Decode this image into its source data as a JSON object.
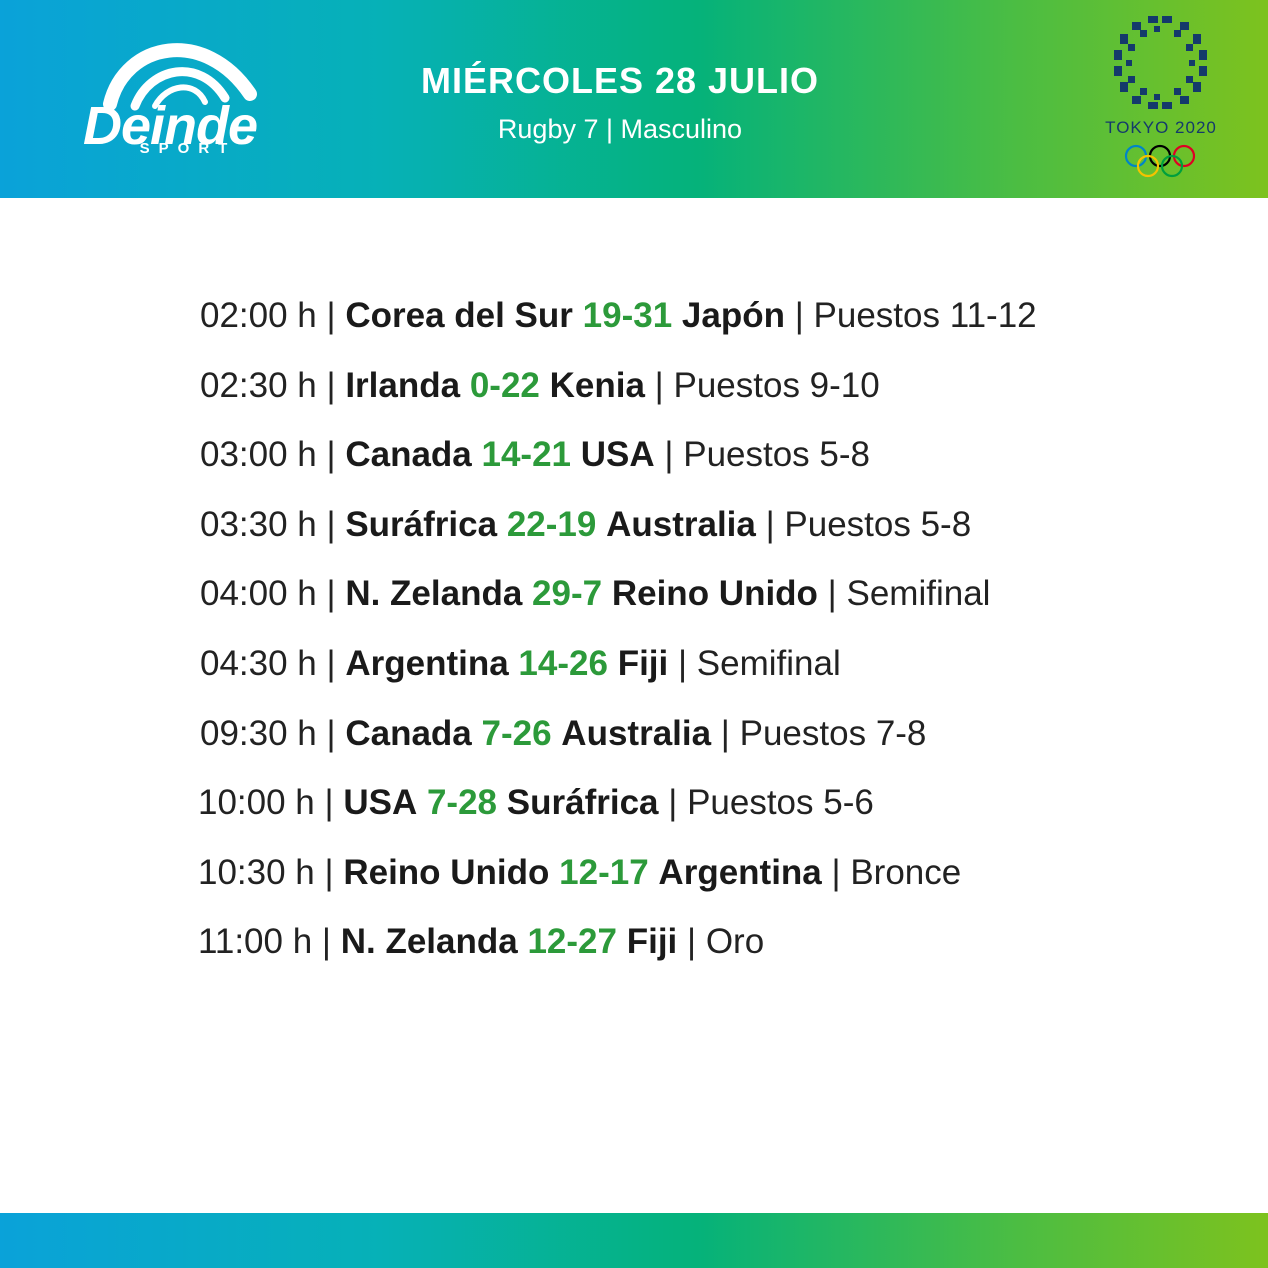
{
  "brand": {
    "name": "Deinde",
    "sub": "SPORT"
  },
  "header": {
    "title": "MIÉRCOLES 28 JULIO",
    "subtitle": "Rugby 7 | Masculino"
  },
  "olympic": {
    "label": "TOKYO 2020"
  },
  "colors": {
    "score": "#2c9a3a",
    "text": "#222222",
    "olympic_blue": "#143a6b"
  },
  "matches": [
    {
      "time": "02:00 h",
      "home": "Corea del Sur",
      "score": "19-31",
      "away": "Japón",
      "stage": "Puestos 11-12"
    },
    {
      "time": "02:30 h",
      "home": "Irlanda",
      "score": "0-22",
      "away": "Kenia",
      "stage": "Puestos 9-10"
    },
    {
      "time": "03:00 h",
      "home": "Canada",
      "score": "14-21",
      "away": "USA",
      "stage": "Puestos 5-8"
    },
    {
      "time": "03:30 h",
      "home": "Suráfrica",
      "score": "22-19",
      "away": "Australia",
      "stage": "Puestos 5-8"
    },
    {
      "time": "04:00 h",
      "home": "N. Zelanda",
      "score": "29-7",
      "away": "Reino Unido",
      "stage": "Semifinal"
    },
    {
      "time": "04:30 h",
      "home": "Argentina",
      "score": "14-26",
      "away": "Fiji",
      "stage": "Semifinal"
    },
    {
      "time": "09:30 h",
      "home": "Canada",
      "score": "7-26",
      "away": "Australia",
      "stage": "Puestos 7-8"
    },
    {
      "time": "10:00 h",
      "home": "USA",
      "score": "7-28",
      "away": "Suráfrica",
      "stage": "Puestos 5-6"
    },
    {
      "time": "10:30 h",
      "home": "Reino Unido",
      "score": "12-17",
      "away": "Argentina",
      "stage": "Bronce"
    },
    {
      "time": "11:00 h",
      "home": "N. Zelanda",
      "score": "12-27",
      "away": "Fiji",
      "stage": "Oro"
    }
  ]
}
